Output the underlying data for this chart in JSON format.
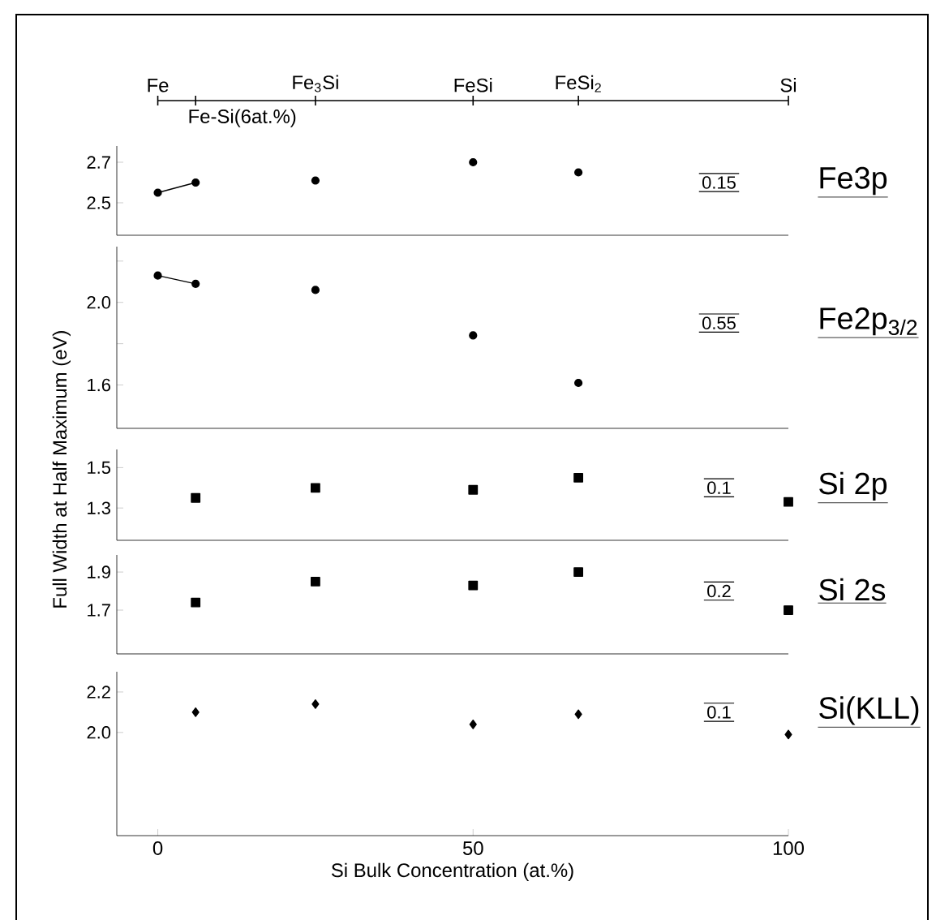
{
  "chart_data": [
    {
      "type": "scatter",
      "marker": "circle",
      "xlim": [
        -6.5,
        100
      ],
      "tick_labels": "y",
      "ylim": [
        2.34,
        2.78
      ],
      "yticks": [
        2.5,
        2.7
      ],
      "annotations": [
        "Fe",
        "Fe-Si(6at.%)",
        "Fe$_{3}$Si",
        "FeSi",
        "FeSi$_{2}$",
        "Si",
        "0.15"
      ],
      "series": [
        {
          "type": "line",
          "color": "#000000",
          "x": [
            0,
            6
          ],
          "values": [
            2.55,
            2.6
          ]
        },
        {
          "name": "Fe3p",
          "color": "#000000",
          "x": [
            25,
            50,
            66.7
          ],
          "values": [
            2.61,
            2.7,
            2.65
          ]
        }
      ]
    },
    {
      "type": "scatter",
      "marker": "circle",
      "xlim": [
        -6.5,
        100
      ],
      "tick_labels": "y",
      "ylim": [
        1.39,
        2.27
      ],
      "yticks": [
        {
          "value": 2.2,
          "label": null
        },
        {
          "value": 2,
          "label": "2.0"
        },
        {
          "value": 1.8,
          "label": null
        },
        1.6
      ],
      "annotations": [
        "0.55"
      ],
      "series": [
        {
          "type": "line",
          "color": "#000000",
          "x": [
            0,
            6
          ],
          "values": [
            2.13,
            2.09
          ]
        },
        {
          "name": "Fe2p$_{3/2}$",
          "color": "#000000",
          "x": [
            25,
            50,
            66.7
          ],
          "values": [
            2.06,
            1.84,
            1.61
          ]
        }
      ]
    },
    {
      "type": "scatter",
      "marker": "square",
      "xlim": [
        -6.5,
        100
      ],
      "tick_labels": "y",
      "ylabel": "Full Width at Half Maximum (eV)",
      "ylim": [
        1.14,
        1.59
      ],
      "yticks": [
        1.3,
        1.5
      ],
      "annotations": [
        "0.1"
      ],
      "series": [
        {
          "name": "Si 2p",
          "color": "#000000",
          "x": [
            6,
            25,
            50,
            66.7,
            100
          ],
          "values": [
            1.35,
            1.4,
            1.39,
            1.45,
            1.33
          ]
        }
      ]
    },
    {
      "type": "scatter",
      "marker": "square",
      "xlim": [
        -6.5,
        100
      ],
      "tick_labels": "y",
      "ylim": [
        1.47,
        1.99
      ],
      "yticks": [
        1.7,
        1.9
      ],
      "annotations": [
        "0.2"
      ],
      "series": [
        {
          "name": "Si 2s",
          "color": "#000000",
          "x": [
            6,
            25,
            50,
            66.7,
            100
          ],
          "values": [
            1.74,
            1.85,
            1.83,
            1.9,
            1.7
          ]
        }
      ]
    },
    {
      "type": "scatter",
      "marker": "diamond",
      "xlim": [
        -6.5,
        100
      ],
      "xticks": [
        0,
        50,
        100
      ],
      "xlabel": "Si  Bulk  Concentration (at.%)",
      "ylim": [
        1.49,
        2.3
      ],
      "yticks": [
        {
          "value": 2,
          "label": "2.0"
        },
        2.2
      ],
      "annotations": [
        "0.1"
      ],
      "series": [
        {
          "name": "Si(KLL)",
          "color": "#000000",
          "x": [
            6,
            25,
            50,
            66.7,
            100
          ],
          "values": [
            2.1,
            2.14,
            2.04,
            2.09,
            1.99
          ]
        }
      ]
    }
  ]
}
